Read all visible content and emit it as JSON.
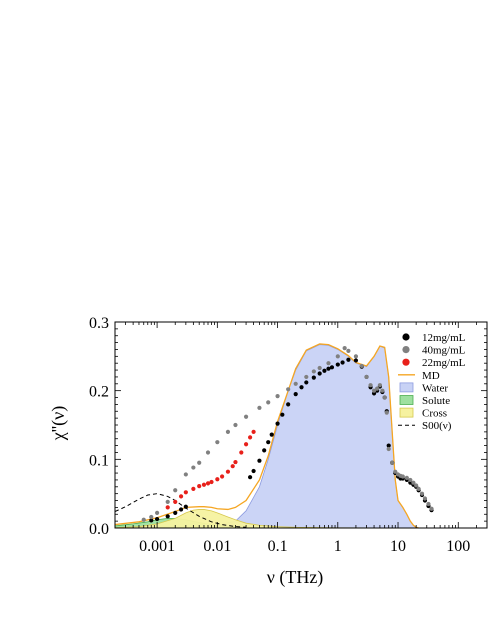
{
  "chart_data": {
    "type": "area",
    "xlabel": "ν (THz)",
    "ylabel": "χ''(ν)",
    "xscale": "log",
    "xlim": [
      0.0002,
      300
    ],
    "ylim": [
      0,
      0.3
    ],
    "x_ticks": [
      {
        "value": 0.001,
        "label": "0.001"
      },
      {
        "value": 0.01,
        "label": "0.01"
      },
      {
        "value": 0.1,
        "label": "0.1"
      },
      {
        "value": 1,
        "label": "1"
      },
      {
        "value": 10,
        "label": "10"
      },
      {
        "value": 100,
        "label": "100"
      }
    ],
    "y_ticks": [
      {
        "value": 0.0,
        "label": "0.0"
      },
      {
        "value": 0.1,
        "label": "0.1"
      },
      {
        "value": 0.2,
        "label": "0.2"
      },
      {
        "value": 0.3,
        "label": "0.3"
      }
    ],
    "legend_position": "top-right",
    "series": [
      {
        "name": "Water",
        "kind": "filled-area",
        "fill": "#c8d2f5",
        "stroke": "#8c9be0",
        "x": [
          0.0002,
          0.001,
          0.003,
          0.006,
          0.01,
          0.02,
          0.03,
          0.05,
          0.07,
          0.1,
          0.15,
          0.2,
          0.3,
          0.5,
          0.7,
          1,
          1.5,
          2,
          3,
          4,
          5,
          6,
          7,
          8,
          9,
          10,
          12,
          14,
          16,
          18,
          20,
          22
        ],
        "y": [
          0.0,
          0.0005,
          0.001,
          0.002,
          0.004,
          0.01,
          0.025,
          0.06,
          0.1,
          0.15,
          0.2,
          0.23,
          0.258,
          0.267,
          0.266,
          0.26,
          0.25,
          0.24,
          0.235,
          0.25,
          0.265,
          0.262,
          0.22,
          0.14,
          0.07,
          0.04,
          0.03,
          0.02,
          0.01,
          0.004,
          0.001,
          0.0
        ]
      },
      {
        "name": "Solute",
        "kind": "filled-area",
        "fill": "#9ee0a0",
        "stroke": "#4caf50",
        "x": [
          0.0002,
          0.0004,
          0.0007,
          0.001,
          0.0015,
          0.002,
          0.003,
          0.005,
          0.008,
          0.012,
          0.02,
          0.04,
          0.1,
          0.5,
          20
        ],
        "y": [
          0.003,
          0.006,
          0.009,
          0.012,
          0.014,
          0.014,
          0.012,
          0.008,
          0.005,
          0.003,
          0.0015,
          0.0008,
          0.0004,
          0.0002,
          0.0
        ]
      },
      {
        "name": "Cross",
        "kind": "filled-area",
        "fill": "#f6f2a0",
        "stroke": "#d6c84e",
        "x": [
          0.0002,
          0.0005,
          0.001,
          0.002,
          0.003,
          0.004,
          0.005,
          0.006,
          0.008,
          0.01,
          0.015,
          0.02,
          0.03,
          0.05,
          0.1,
          0.2,
          1,
          20
        ],
        "y": [
          0.0005,
          0.002,
          0.006,
          0.014,
          0.022,
          0.026,
          0.027,
          0.027,
          0.025,
          0.022,
          0.016,
          0.012,
          0.007,
          0.004,
          0.002,
          0.001,
          0.0003,
          0.0
        ]
      },
      {
        "name": "MD",
        "kind": "line",
        "color": "#f5a623",
        "x": [
          0.0002,
          0.0005,
          0.001,
          0.002,
          0.003,
          0.005,
          0.006,
          0.008,
          0.01,
          0.015,
          0.02,
          0.03,
          0.05,
          0.07,
          0.1,
          0.15,
          0.2,
          0.3,
          0.5,
          0.7,
          1,
          1.5,
          2,
          3,
          4,
          5,
          6,
          7,
          8,
          9,
          10,
          12,
          14,
          16,
          18,
          20,
          22
        ],
        "y": [
          0.005,
          0.009,
          0.015,
          0.024,
          0.03,
          0.031,
          0.031,
          0.03,
          0.028,
          0.027,
          0.03,
          0.04,
          0.07,
          0.105,
          0.155,
          0.2,
          0.232,
          0.259,
          0.268,
          0.267,
          0.261,
          0.251,
          0.241,
          0.236,
          0.25,
          0.265,
          0.263,
          0.22,
          0.14,
          0.07,
          0.04,
          0.03,
          0.02,
          0.01,
          0.004,
          0.001,
          0.0
        ]
      },
      {
        "name": "S00(ν)",
        "kind": "dashed-line",
        "color": "#000000",
        "x": [
          0.0002,
          0.0003,
          0.0005,
          0.0007,
          0.001,
          0.0015,
          0.002,
          0.003,
          0.005,
          0.008,
          0.012,
          0.02,
          0.03
        ],
        "y": [
          0.024,
          0.031,
          0.042,
          0.048,
          0.05,
          0.046,
          0.04,
          0.029,
          0.017,
          0.009,
          0.005,
          0.002,
          0.001
        ]
      },
      {
        "name": "12mg/mL",
        "kind": "points",
        "color": "#000000",
        "x": [
          0.0008,
          0.001,
          0.0015,
          0.002,
          0.0025,
          0.003,
          0.035,
          0.04,
          0.05,
          0.06,
          0.07,
          0.08,
          0.1,
          0.12,
          0.15,
          0.2,
          0.25,
          0.3,
          0.4,
          0.5,
          0.6,
          0.7,
          0.8,
          1,
          1.2,
          1.5,
          2,
          2.5,
          3,
          3.5,
          4,
          4.5,
          5,
          5.5,
          6,
          6.5,
          7,
          8,
          9,
          10,
          11,
          12,
          14,
          16,
          18,
          20,
          22,
          25,
          28,
          32,
          36
        ],
        "y": [
          0.011,
          0.013,
          0.017,
          0.022,
          0.027,
          0.031,
          0.074,
          0.083,
          0.098,
          0.113,
          0.125,
          0.136,
          0.152,
          0.165,
          0.18,
          0.195,
          0.205,
          0.212,
          0.219,
          0.225,
          0.229,
          0.232,
          0.234,
          0.238,
          0.241,
          0.245,
          0.244,
          0.235,
          0.22,
          0.205,
          0.196,
          0.2,
          0.206,
          0.198,
          0.19,
          0.17,
          0.12,
          0.095,
          0.08,
          0.075,
          0.072,
          0.072,
          0.07,
          0.066,
          0.063,
          0.06,
          0.055,
          0.048,
          0.04,
          0.032,
          0.026
        ]
      },
      {
        "name": "40mg/mL",
        "kind": "points",
        "color": "#808080",
        "x": [
          0.0006,
          0.0008,
          0.001,
          0.0015,
          0.002,
          0.003,
          0.004,
          0.005,
          0.007,
          0.01,
          0.015,
          0.02,
          0.03,
          0.05,
          0.07,
          0.1,
          0.15,
          0.2,
          0.3,
          0.4,
          0.5,
          0.7,
          1,
          1.3,
          1.5,
          2,
          2.5,
          3,
          3.5,
          4,
          4.5,
          5,
          5.5,
          6,
          6.5,
          7,
          8,
          9,
          10,
          11,
          12,
          14,
          16,
          18,
          20,
          22,
          25,
          28,
          32,
          36
        ],
        "y": [
          0.012,
          0.016,
          0.022,
          0.038,
          0.055,
          0.078,
          0.088,
          0.095,
          0.11,
          0.125,
          0.14,
          0.15,
          0.162,
          0.175,
          0.183,
          0.192,
          0.202,
          0.21,
          0.22,
          0.228,
          0.233,
          0.24,
          0.25,
          0.262,
          0.258,
          0.25,
          0.236,
          0.22,
          0.208,
          0.2,
          0.203,
          0.208,
          0.2,
          0.19,
          0.168,
          0.115,
          0.095,
          0.082,
          0.078,
          0.076,
          0.075,
          0.073,
          0.07,
          0.066,
          0.062,
          0.057,
          0.05,
          0.043,
          0.035,
          0.028
        ]
      },
      {
        "name": "22mg/mL",
        "kind": "points",
        "color": "#e8201a",
        "x": [
          0.0015,
          0.002,
          0.0025,
          0.003,
          0.004,
          0.005,
          0.006,
          0.007,
          0.008,
          0.01,
          0.012,
          0.015,
          0.018,
          0.02,
          0.025,
          0.03,
          0.035,
          0.04
        ],
        "y": [
          0.03,
          0.038,
          0.046,
          0.052,
          0.057,
          0.061,
          0.063,
          0.065,
          0.067,
          0.071,
          0.075,
          0.082,
          0.09,
          0.096,
          0.11,
          0.122,
          0.132,
          0.14
        ]
      }
    ],
    "legend": [
      {
        "label": "12mg/mL",
        "marker": "dot",
        "color": "#000000"
      },
      {
        "label": "40mg/mL",
        "marker": "dot",
        "color": "#808080"
      },
      {
        "label": "22mg/mL",
        "marker": "dot",
        "color": "#e8201a"
      },
      {
        "label": "MD",
        "marker": "line",
        "color": "#f5a623"
      },
      {
        "label": "Water",
        "marker": "box",
        "color": "#c8d2f5",
        "edge": "#8c9be0"
      },
      {
        "label": "Solute",
        "marker": "box",
        "color": "#9ee0a0",
        "edge": "#4caf50"
      },
      {
        "label": "Cross",
        "marker": "box",
        "color": "#f6f2a0",
        "edge": "#d6c84e"
      },
      {
        "label": "S00(ν)",
        "marker": "dash",
        "color": "#000000"
      }
    ]
  }
}
